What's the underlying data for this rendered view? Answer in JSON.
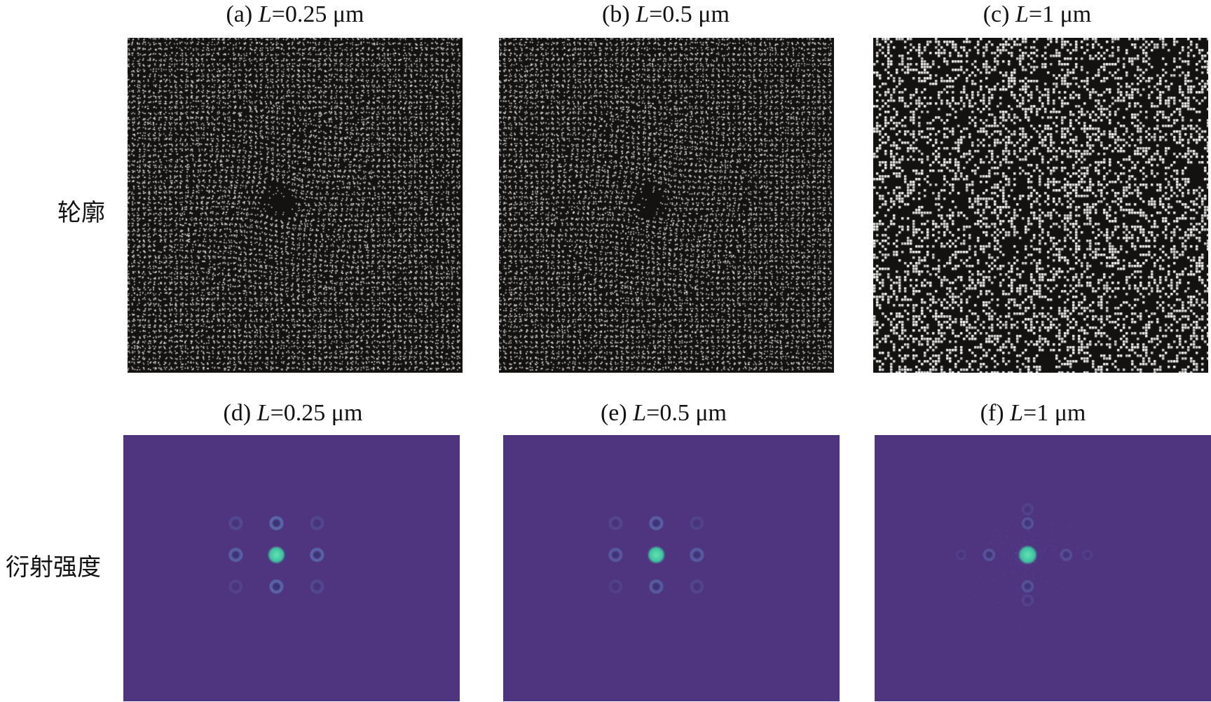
{
  "row_labels": {
    "contour": "轮廓",
    "diffraction": "衍射强度"
  },
  "panels": [
    {
      "id": "a",
      "prefix": "(a) ",
      "var": "L",
      "value": "=0.25 μm",
      "kind": "contour",
      "pattern": "fine-lattice-with-defect"
    },
    {
      "id": "b",
      "prefix": "(b) ",
      "var": "L",
      "value": "=0.5 μm",
      "kind": "contour",
      "pattern": "fine-lattice-with-defect"
    },
    {
      "id": "c",
      "prefix": "(c) ",
      "var": "L",
      "value": "=1 μm",
      "kind": "contour",
      "pattern": "random-speckle"
    },
    {
      "id": "d",
      "prefix": "(d) ",
      "var": "L",
      "value": "=0.25 μm",
      "kind": "diffraction",
      "pattern": "3x3-orders"
    },
    {
      "id": "e",
      "prefix": "(e) ",
      "var": "L",
      "value": "=0.5 μm",
      "kind": "diffraction",
      "pattern": "3x3-orders-weak"
    },
    {
      "id": "f",
      "prefix": "(f) ",
      "var": "L",
      "value": "=1 μm",
      "kind": "diffraction",
      "pattern": "central-spot-with-cross"
    }
  ],
  "colors": {
    "contour_bg": "#141210",
    "contour_fg": "#f2f2f2",
    "diffraction_bg": "#4f3480",
    "spot_center": "#3ec3a0",
    "spot_ring": "#5a6fb0"
  }
}
